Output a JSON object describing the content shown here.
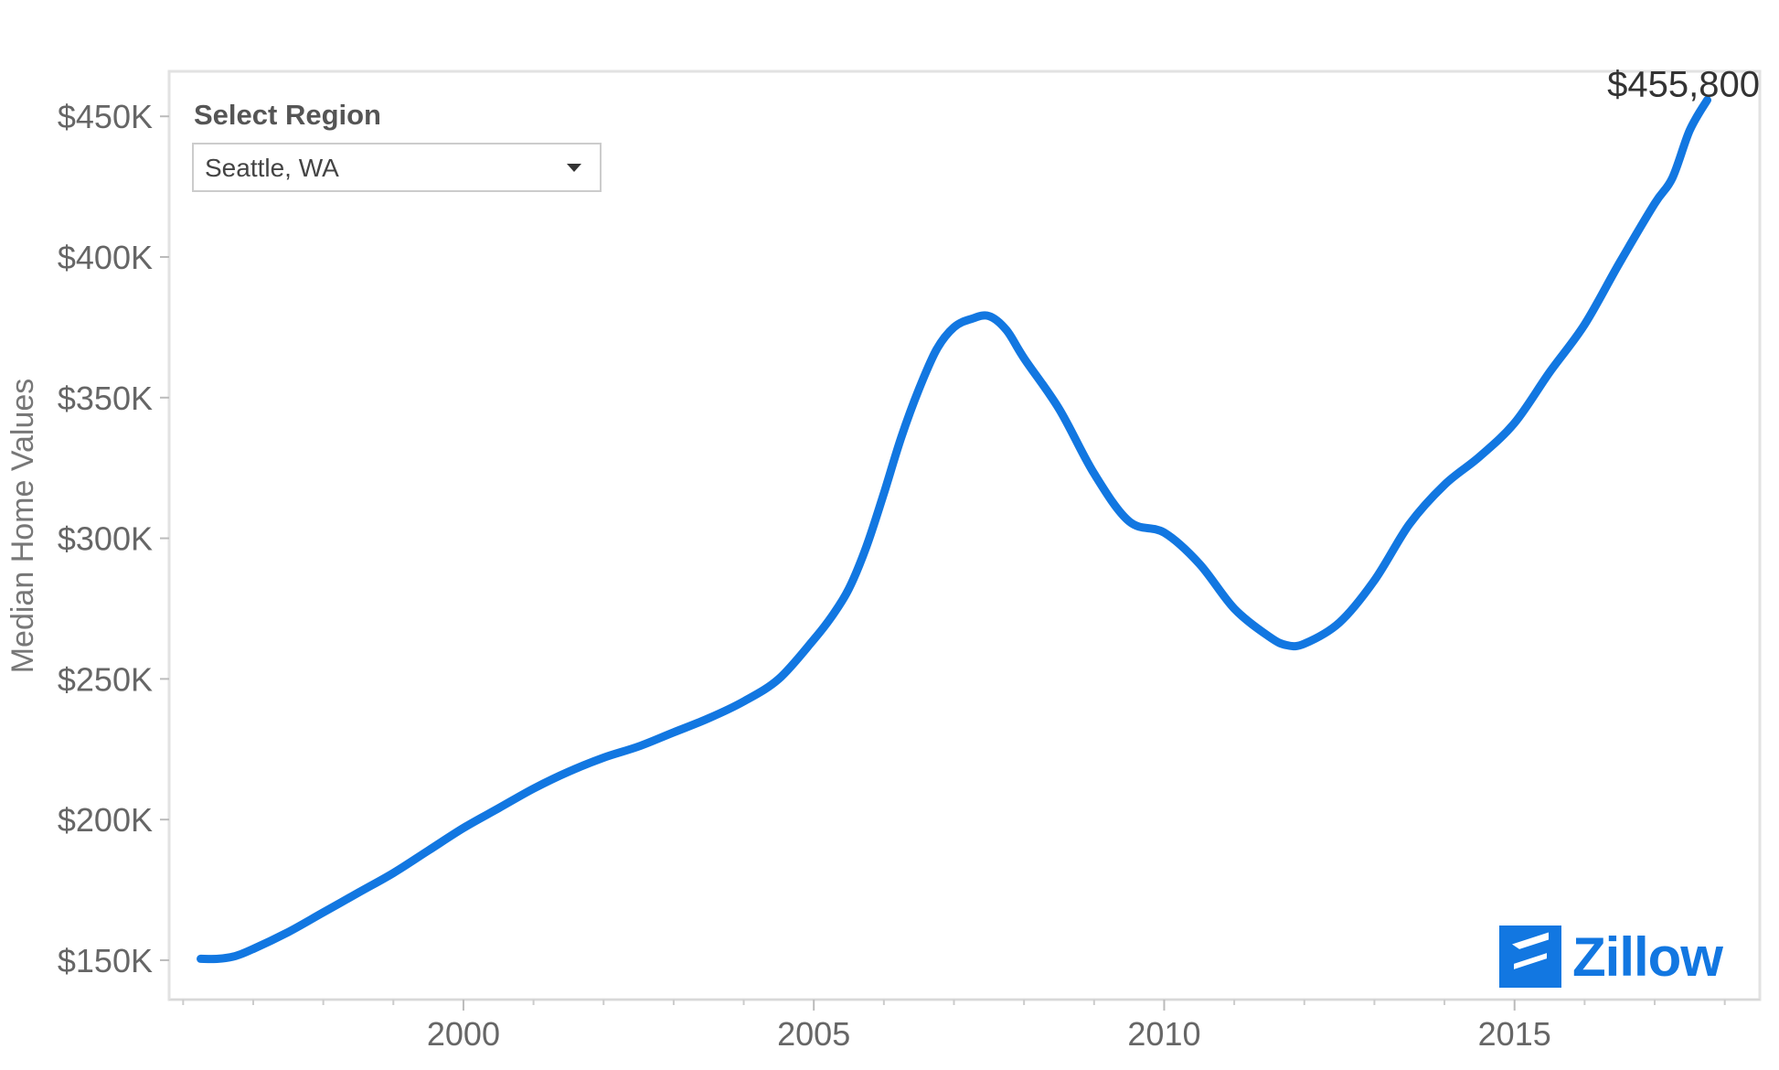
{
  "chart_data": {
    "type": "line",
    "title": "",
    "xlabel": "",
    "ylabel": "Median Home Values",
    "xlim": [
      1995.8,
      2018.5
    ],
    "ylim": [
      136000,
      466000
    ],
    "x_ticks": [
      2000,
      2005,
      2010,
      2015
    ],
    "x_tick_labels": [
      "2000",
      "2005",
      "2010",
      "2015"
    ],
    "x_minor_ticks": [
      1996,
      1997,
      1998,
      1999,
      2001,
      2002,
      2003,
      2004,
      2006,
      2007,
      2008,
      2009,
      2011,
      2012,
      2013,
      2014,
      2016,
      2017,
      2018
    ],
    "y_ticks": [
      150000,
      200000,
      250000,
      300000,
      350000,
      400000,
      450000
    ],
    "y_tick_labels": [
      "$150K",
      "$200K",
      "$250K",
      "$300K",
      "$350K",
      "$400K",
      "$450K"
    ],
    "grid": false,
    "line_color": "#1277e1",
    "series": [
      {
        "region": "Seattle, WA",
        "x": [
          1996.25,
          1996.5,
          1996.75,
          1997.0,
          1997.5,
          1998.0,
          1998.5,
          1999.0,
          1999.5,
          2000.0,
          2000.5,
          2001.0,
          2001.5,
          2002.0,
          2002.5,
          2003.0,
          2003.5,
          2004.0,
          2004.5,
          2005.0,
          2005.25,
          2005.5,
          2005.75,
          2006.0,
          2006.25,
          2006.5,
          2006.75,
          2007.0,
          2007.25,
          2007.5,
          2007.75,
          2008.0,
          2008.5,
          2009.0,
          2009.5,
          2010.0,
          2010.5,
          2011.0,
          2011.5,
          2011.75,
          2012.0,
          2012.5,
          2013.0,
          2013.5,
          2014.0,
          2014.5,
          2015.0,
          2015.5,
          2016.0,
          2016.5,
          2017.0,
          2017.25,
          2017.5,
          2017.75
        ],
        "y": [
          150500,
          150500,
          151500,
          154000,
          160000,
          167000,
          174000,
          181000,
          189000,
          197000,
          204000,
          211000,
          217000,
          222000,
          226000,
          231000,
          236000,
          242000,
          250000,
          264000,
          272000,
          282000,
          297000,
          316000,
          336000,
          353000,
          367000,
          375000,
          378000,
          379000,
          374000,
          364000,
          346000,
          323000,
          306000,
          302000,
          291000,
          275000,
          265000,
          262000,
          262500,
          270000,
          285000,
          305000,
          319000,
          329000,
          341000,
          359000,
          376000,
          398000,
          419000,
          428000,
          445000,
          455800
        ]
      }
    ],
    "annotations": [
      {
        "text": "$455,800",
        "x": 2017.75,
        "y": 455800
      }
    ]
  },
  "widget": {
    "title": "Select Region",
    "selected": "Seattle, WA"
  },
  "logo": {
    "text": "Zillow"
  }
}
